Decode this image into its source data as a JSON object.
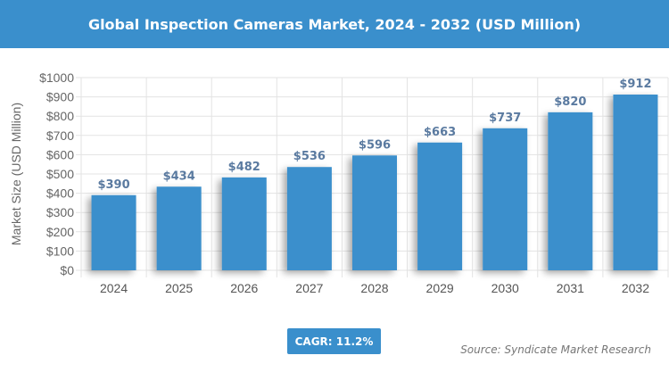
{
  "chart_data": {
    "type": "bar",
    "title": "Global Inspection Cameras Market, 2024 - 2032 (USD Million)",
    "ylabel": "Market Size (USD Million)",
    "xlabel": "",
    "categories": [
      "2024",
      "2025",
      "2026",
      "2027",
      "2028",
      "2029",
      "2030",
      "2031",
      "2032"
    ],
    "values": [
      390,
      434,
      482,
      536,
      596,
      663,
      737,
      820,
      912
    ],
    "data_labels": [
      "$390",
      "$434",
      "$482",
      "$536",
      "$596",
      "$663",
      "$737",
      "$820",
      "$912"
    ],
    "ylim": [
      0,
      1000
    ],
    "yticks": [
      "$0",
      "$100",
      "$200",
      "$300",
      "$400",
      "$500",
      "$600",
      "$700",
      "$800",
      "$900",
      "$1000"
    ],
    "grid": true,
    "bar_color": "#3a8fcc",
    "label_color": "#5a7aa0"
  },
  "cagr_label": "CAGR: 11.2%",
  "source": "Source: Syndicate Market Research"
}
